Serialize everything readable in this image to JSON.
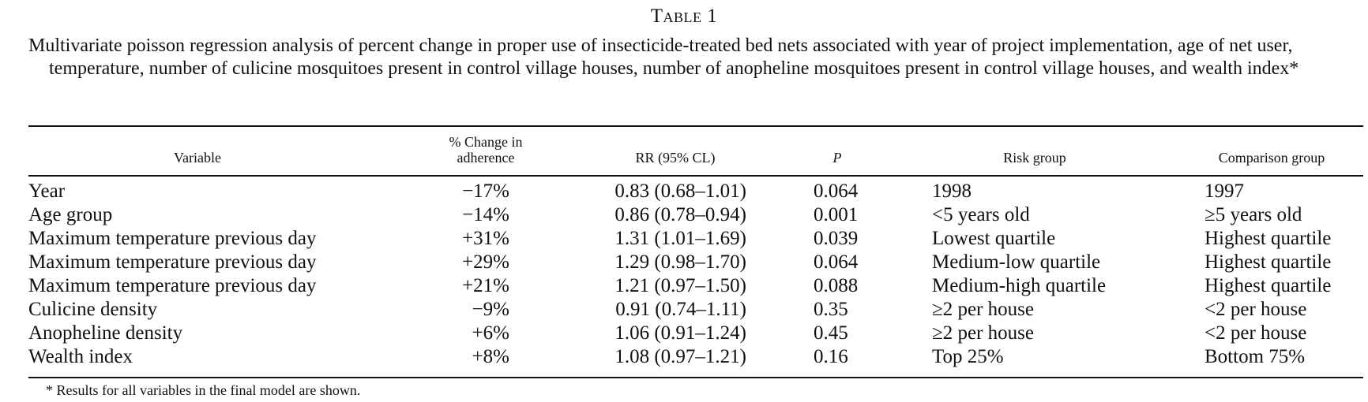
{
  "table_label": "Table 1",
  "caption": "Multivariate poisson regression analysis of percent change in proper use of insecticide-treated bed nets associated with year of project implementation, age of net user, temperature, number of culicine mosquitoes present in control village houses, number of anopheline mosquitoes present in control village houses, and wealth index*",
  "headers": {
    "variable": "Variable",
    "change_line1": "% Change in",
    "change_line2": "adherence",
    "rr": "RR (95% CL)",
    "p": "P",
    "risk": "Risk group",
    "comparison": "Comparison group"
  },
  "rows": [
    {
      "variable": "Year",
      "change": "−17%",
      "rr": "0.83 (0.68–1.01)",
      "p": "0.064",
      "risk": "1998",
      "comparison": "1997"
    },
    {
      "variable": "Age group",
      "change": "−14%",
      "rr": "0.86 (0.78–0.94)",
      "p": "0.001",
      "risk": "<5 years old",
      "comparison": "≥5 years old"
    },
    {
      "variable": "Maximum temperature previous day",
      "change": "+31%",
      "rr": "1.31 (1.01–1.69)",
      "p": "0.039",
      "risk": "Lowest quartile",
      "comparison": "Highest quartile"
    },
    {
      "variable": "Maximum temperature previous day",
      "change": "+29%",
      "rr": "1.29 (0.98–1.70)",
      "p": "0.064",
      "risk": "Medium-low quartile",
      "comparison": "Highest quartile"
    },
    {
      "variable": "Maximum temperature previous day",
      "change": "+21%",
      "rr": "1.21 (0.97–1.50)",
      "p": "0.088",
      "risk": "Medium-high quartile",
      "comparison": "Highest quartile"
    },
    {
      "variable": "Culicine density",
      "change": "−9%",
      "rr": "0.91 (0.74–1.11)",
      "p": "0.35",
      "risk": "≥2 per house",
      "comparison": "<2 per house"
    },
    {
      "variable": "Anopheline density",
      "change": "+6%",
      "rr": "1.06 (0.91–1.24)",
      "p": "0.45",
      "risk": "≥2 per house",
      "comparison": "<2 per house"
    },
    {
      "variable": "Wealth index",
      "change": "+8%",
      "rr": "1.08 (0.97–1.21)",
      "p": "0.16",
      "risk": "Top 25%",
      "comparison": "Bottom 75%"
    }
  ],
  "footnote": "* Results for all variables in the final model are shown."
}
